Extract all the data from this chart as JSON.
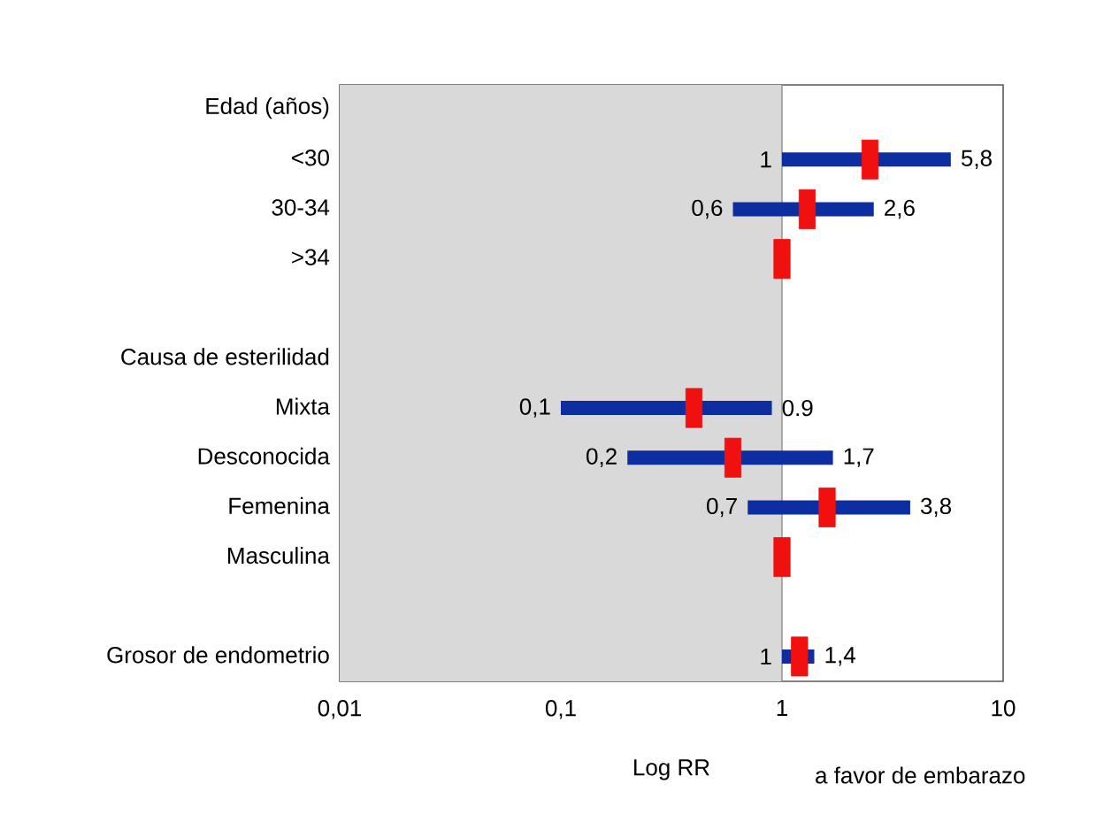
{
  "chart_data": {
    "type": "scatter",
    "orientation": "horizontal",
    "categories": [
      "Edad (años)",
      "<30",
      "30-34",
      ">34",
      null,
      "Causa de esterilidad",
      "Mixta",
      "Desconocida",
      "Femenina",
      "Masculina",
      null,
      "Grosor de endometrio"
    ],
    "values": [
      null,
      2.5,
      1.3,
      1,
      null,
      null,
      0.4,
      0.6,
      1.6,
      1,
      null,
      1.2
    ],
    "errors": [
      null,
      [
        1,
        5.8
      ],
      [
        0.6,
        2.6
      ],
      null,
      null,
      null,
      [
        0.1,
        0.9
      ],
      [
        0.2,
        1.7
      ],
      [
        0.7,
        3.8
      ],
      null,
      null,
      [
        1,
        1.4
      ]
    ],
    "color": "#f01010",
    "marker": "square",
    "log": "x",
    "xlim": [
      0.01,
      10
    ],
    "xticks": [
      {
        "value": 0.01,
        "label": "0,01"
      },
      {
        "value": 0.1,
        "label": "0,1"
      },
      1,
      10
    ],
    "xlabel": "Log RR",
    "bands": [
      {
        "axis": "x",
        "from": 0.01,
        "to": 1,
        "color": "#d9d9d9"
      }
    ],
    "ref_lines": [
      {
        "axis": "x",
        "value": 1,
        "color": "#8c8c8c"
      }
    ],
    "annotations": [
      "a favor de embarazo",
      {
        "text": "1",
        "x": 1,
        "y": "<30"
      },
      {
        "text": "5,8",
        "x": 5.8,
        "y": "<30"
      },
      {
        "text": "0,6",
        "x": 0.6,
        "y": "30-34"
      },
      {
        "text": "2,6",
        "x": 2.6,
        "y": "30-34"
      },
      {
        "text": "0,1",
        "x": 0.1,
        "y": "Mixta"
      },
      {
        "text": "0.9",
        "x": 0.9,
        "y": "Mixta"
      },
      {
        "text": "0,2",
        "x": 0.2,
        "y": "Desconocida"
      },
      {
        "text": "1,7",
        "x": 1.7,
        "y": "Desconocida"
      },
      {
        "text": "0,7",
        "x": 0.7,
        "y": "Femenina"
      },
      {
        "text": "3,8",
        "x": 3.8,
        "y": "Femenina"
      },
      {
        "text": "1",
        "x": 1,
        "y": "Grosor de endometrio"
      },
      {
        "text": "1,4",
        "x": 1.4,
        "y": "Grosor de endometrio"
      }
    ]
  }
}
